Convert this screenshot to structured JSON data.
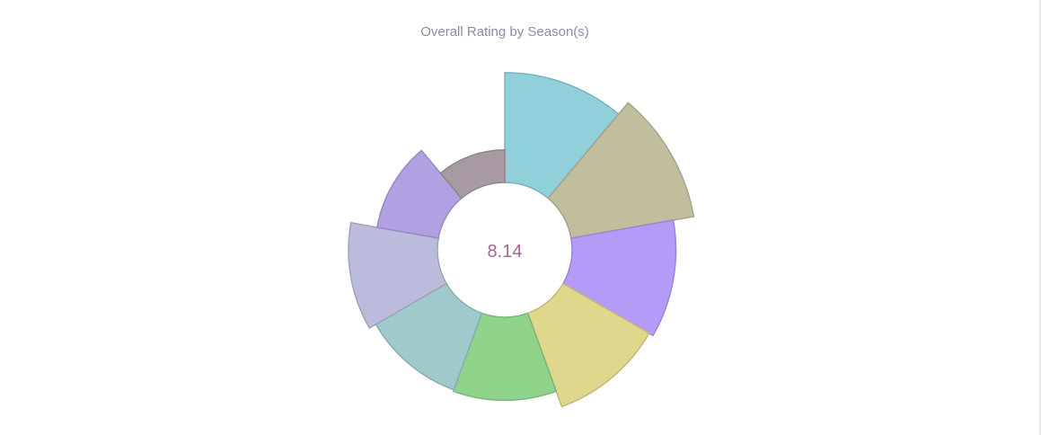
{
  "chart_data": {
    "type": "pie",
    "subtype": "polar-area-donut",
    "title": "Overall Rating by Season(s)",
    "center_label": "8.14",
    "slices": [
      {
        "value": 0.74,
        "color": "#91cfdb"
      },
      {
        "value": 0.84,
        "color": "#c1be9e"
      },
      {
        "value": 0.7,
        "color": "#b59bf8"
      },
      {
        "value": 0.67,
        "color": "#dfd78b"
      },
      {
        "value": 0.56,
        "color": "#90d38b"
      },
      {
        "value": 0.55,
        "color": "#a0c9cc"
      },
      {
        "value": 0.6,
        "color": "#bbbcdb"
      },
      {
        "value": 0.42,
        "color": "#b1a0e2"
      },
      {
        "value": 0.22,
        "color": "#a79aa3"
      }
    ]
  }
}
